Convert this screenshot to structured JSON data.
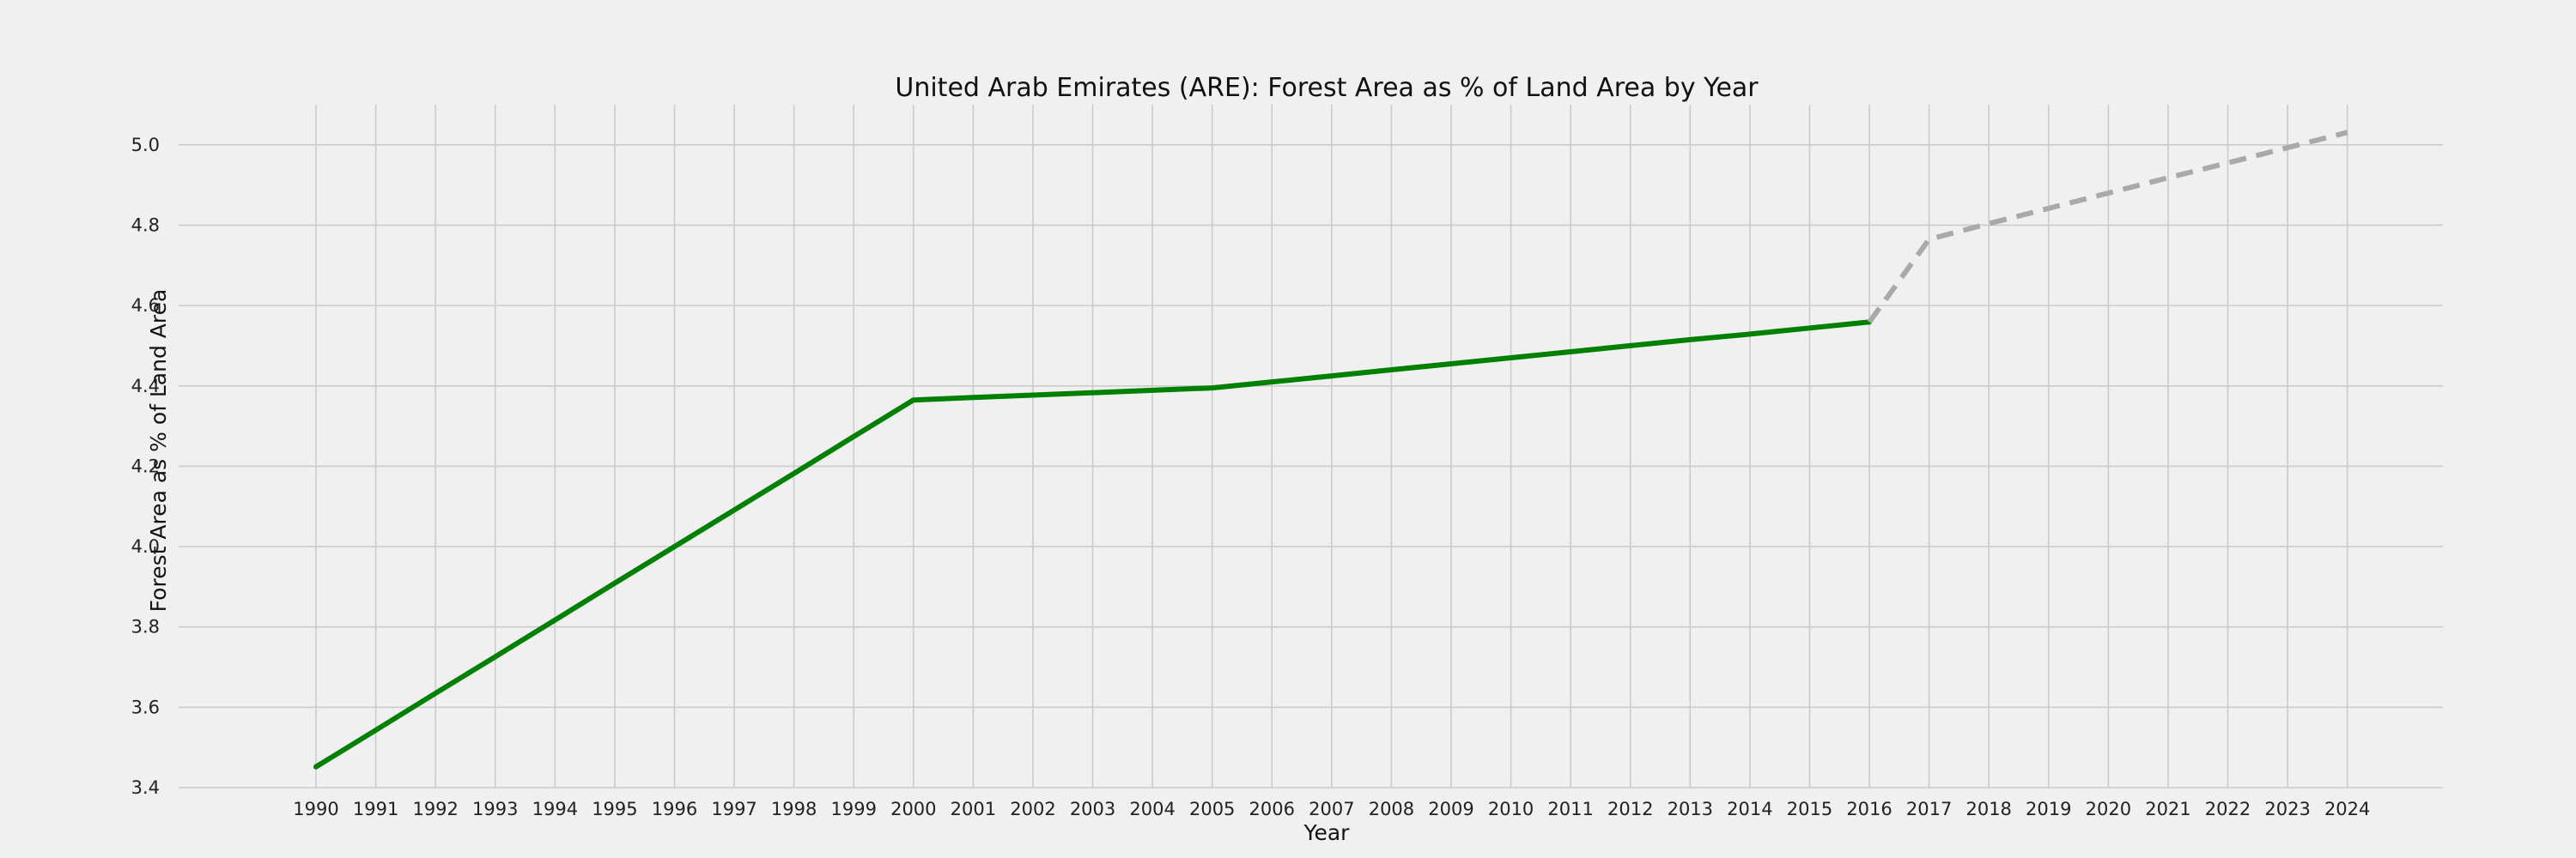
{
  "chart_data": {
    "type": "line",
    "title": "United Arab Emirates (ARE): Forest Area as % of Land Area by Year",
    "xlabel": "Year",
    "ylabel": "Forest Area as % of Land Area",
    "xlim": [
      1987.7,
      2025.6
    ],
    "ylim": [
      3.4,
      5.1
    ],
    "x_ticks": [
      1990,
      1991,
      1992,
      1993,
      1994,
      1995,
      1996,
      1997,
      1998,
      1999,
      2000,
      2001,
      2002,
      2003,
      2004,
      2005,
      2006,
      2007,
      2008,
      2009,
      2010,
      2011,
      2012,
      2013,
      2014,
      2015,
      2016,
      2017,
      2018,
      2019,
      2020,
      2021,
      2022,
      2023,
      2024
    ],
    "y_ticks": [
      "3.4",
      "3.6",
      "3.8",
      "4.0",
      "4.2",
      "4.4",
      "4.6",
      "4.8",
      "5.0"
    ],
    "grid": true,
    "series": [
      {
        "style": "solid",
        "color": "#008000",
        "x": [
          1990,
          1991,
          1992,
          1993,
          1994,
          1995,
          1996,
          1997,
          1998,
          1999,
          2000,
          2001,
          2002,
          2003,
          2004,
          2005,
          2006,
          2007,
          2008,
          2009,
          2010,
          2011,
          2012,
          2013,
          2014,
          2015,
          2016
        ],
        "values": [
          3.452,
          3.543,
          3.635,
          3.726,
          3.817,
          3.909,
          4.0,
          4.091,
          4.182,
          4.274,
          4.365,
          4.371,
          4.377,
          4.383,
          4.389,
          4.395,
          4.41,
          4.425,
          4.44,
          4.455,
          4.47,
          4.485,
          4.5,
          4.515,
          4.529,
          4.544,
          4.559
        ]
      },
      {
        "style": "dashed",
        "color": "#a9a9a9",
        "x": [
          2016,
          2017,
          2018,
          2019,
          2020,
          2021,
          2022,
          2023,
          2024
        ],
        "values": [
          4.559,
          4.765,
          4.804,
          4.842,
          4.88,
          4.918,
          4.955,
          4.993,
          5.031
        ]
      }
    ]
  }
}
